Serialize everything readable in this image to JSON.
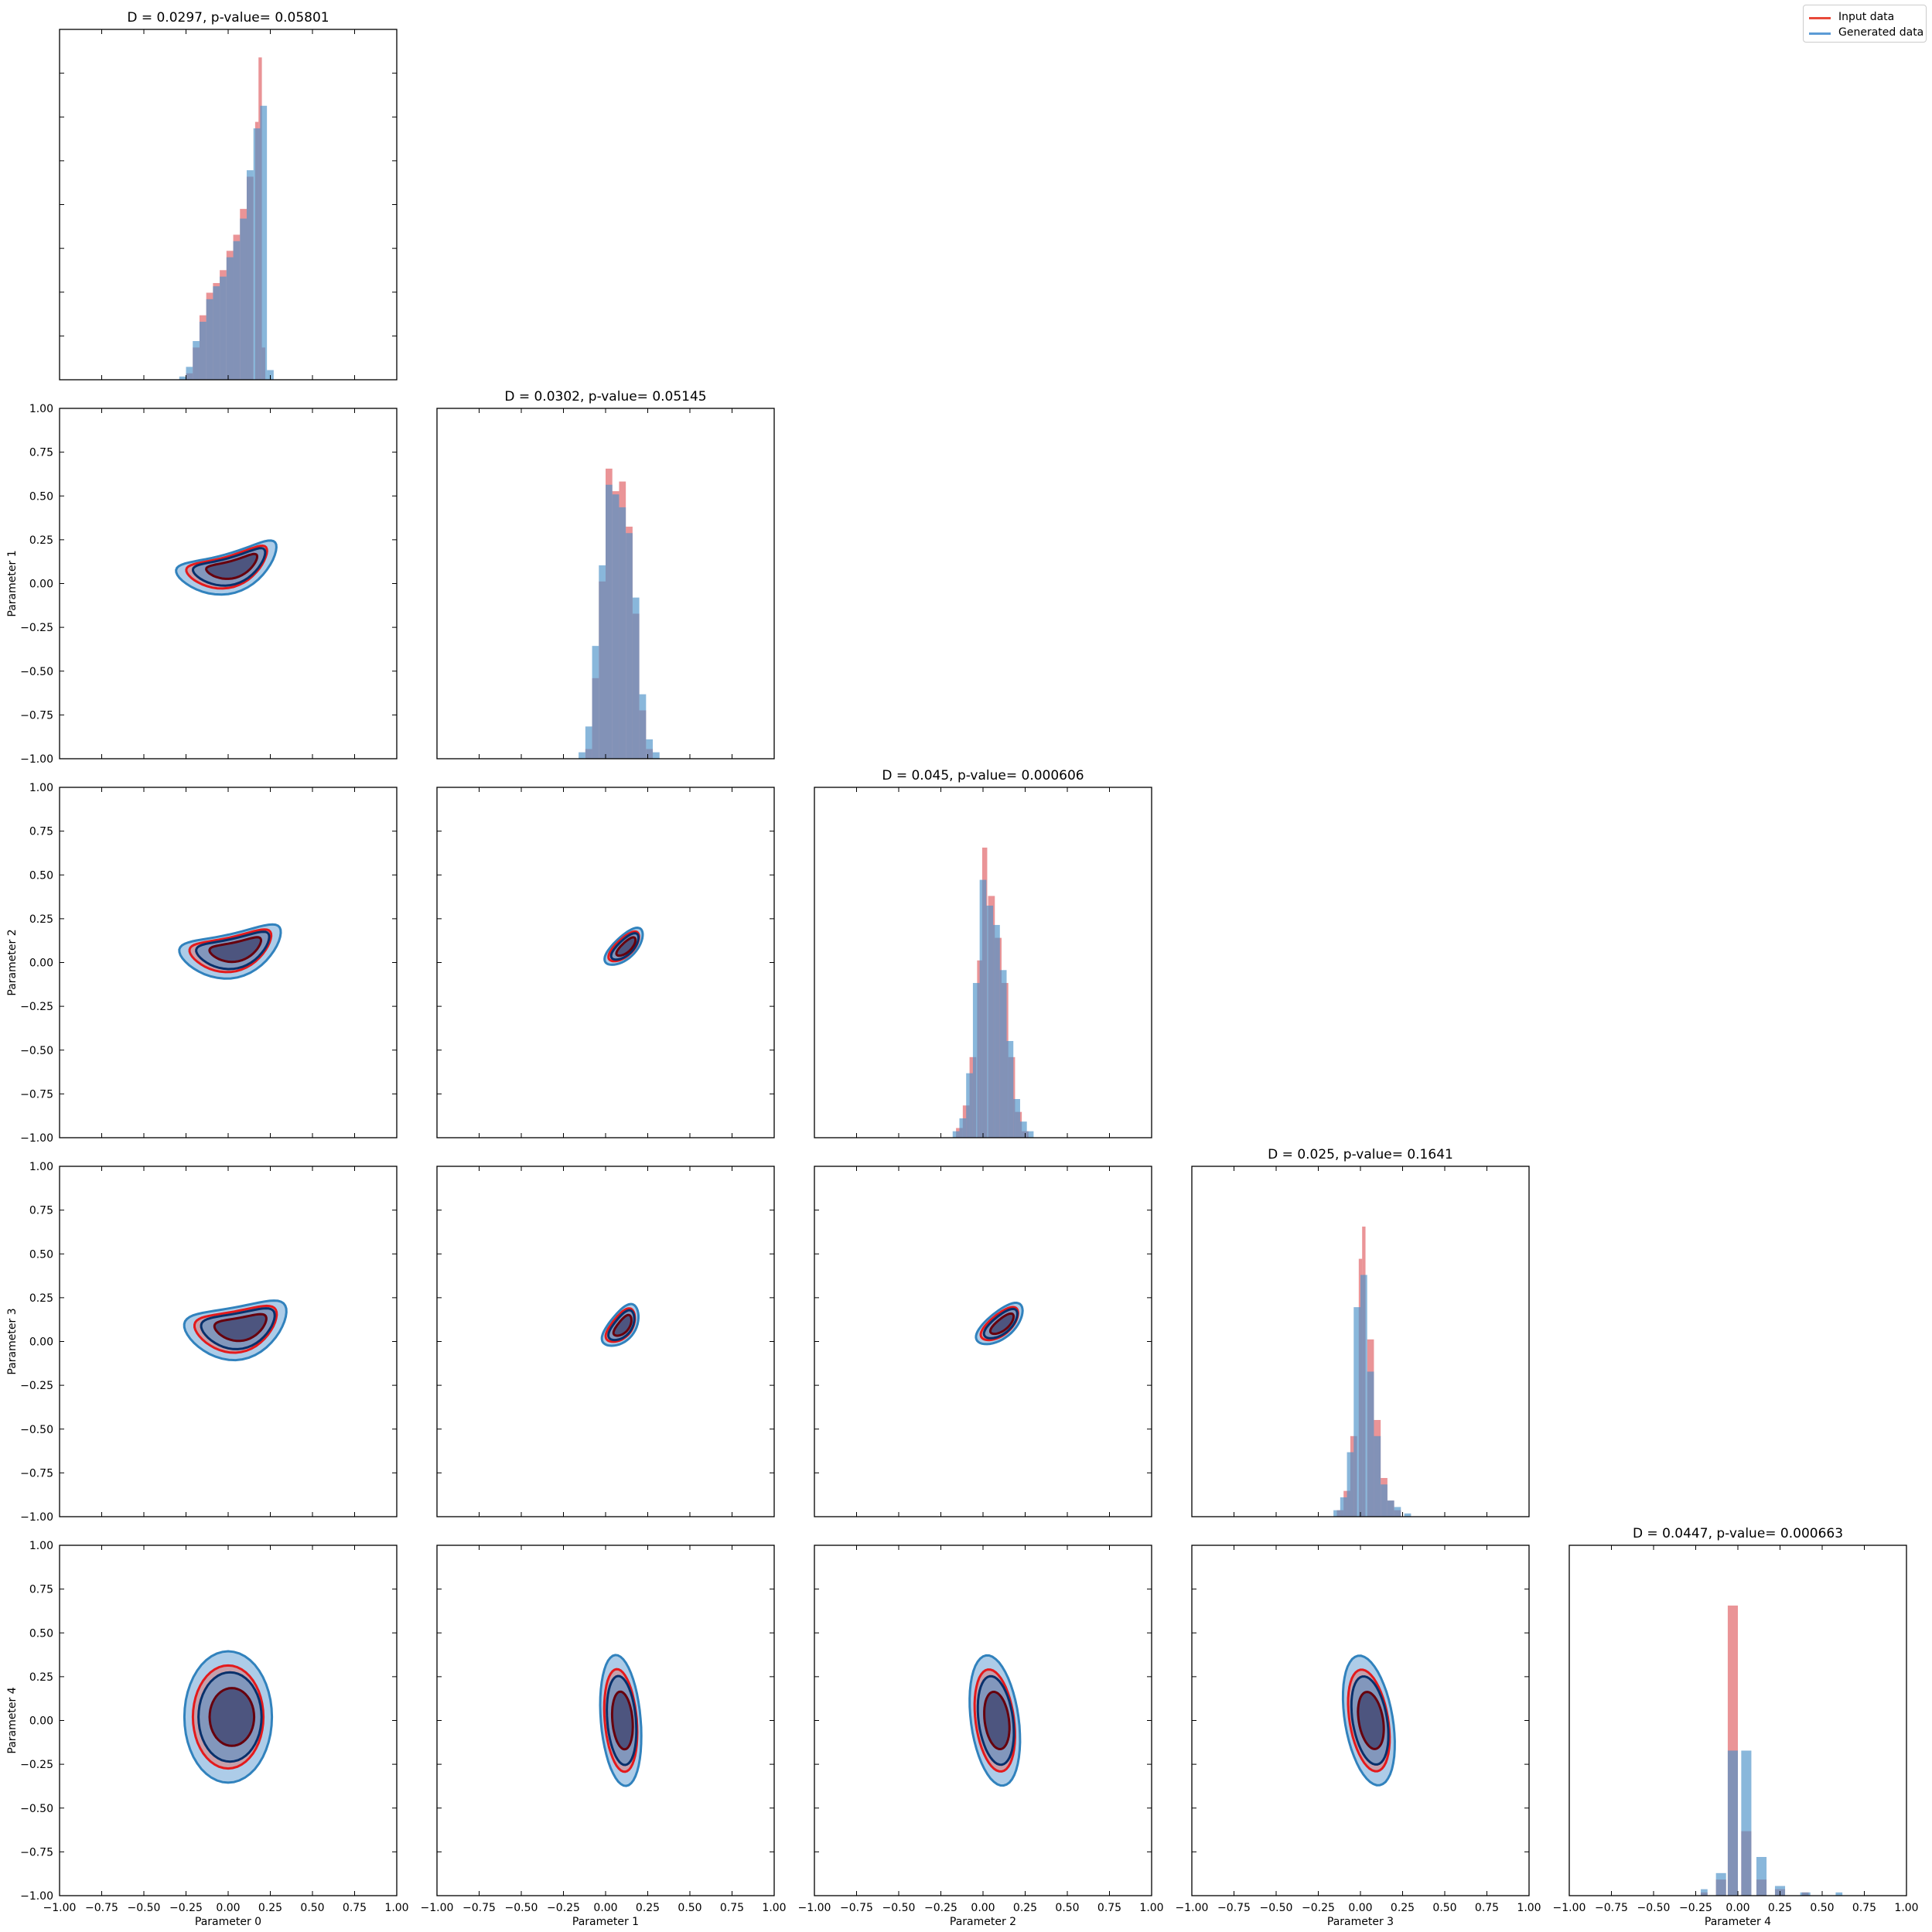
{
  "legend": {
    "entries": [
      {
        "label": "Input data",
        "color": "#e8493a"
      },
      {
        "label": "Generated data",
        "color": "#5b9bd5"
      }
    ]
  },
  "colors": {
    "input_hist": "#de5a5f",
    "generated_hist": "#4a90c8",
    "input_contour_fill": "#e46a62",
    "input_contour_line": "#e41a1c",
    "input_contour_dark": "#67000d",
    "generated_contour_fill": "#4a8fcb",
    "generated_contour_line": "#3182bd",
    "generated_contour_dark": "#08306b"
  },
  "chart_data": {
    "type": "corner",
    "parameters": [
      "Parameter 0",
      "Parameter 1",
      "Parameter 2",
      "Parameter 3",
      "Parameter 4"
    ],
    "axis_range": [
      -1.0,
      1.0
    ],
    "tick_labels": [
      "−1.00",
      "−0.75",
      "−0.50",
      "−0.25",
      "0.00",
      "0.25",
      "0.50",
      "0.75",
      "1.00"
    ],
    "diagonal": [
      {
        "title": "D = 0.0297, p-value= 0.05801",
        "peak": 0.19,
        "shape": "skewed_left",
        "input_hist": [
          [
            -0.23,
            0.02
          ],
          [
            -0.19,
            0.1
          ],
          [
            -0.15,
            0.2
          ],
          [
            -0.11,
            0.27
          ],
          [
            -0.07,
            0.3
          ],
          [
            -0.03,
            0.34
          ],
          [
            0.01,
            0.4
          ],
          [
            0.05,
            0.45
          ],
          [
            0.09,
            0.53
          ],
          [
            0.13,
            0.63
          ],
          [
            0.17,
            0.8
          ],
          [
            0.19,
            1.0
          ],
          [
            0.21,
            0.1
          ]
        ],
        "generated_hist": [
          [
            -0.27,
            0.01
          ],
          [
            -0.23,
            0.04
          ],
          [
            -0.19,
            0.12
          ],
          [
            -0.15,
            0.18
          ],
          [
            -0.11,
            0.25
          ],
          [
            -0.07,
            0.29
          ],
          [
            -0.03,
            0.32
          ],
          [
            0.01,
            0.38
          ],
          [
            0.05,
            0.43
          ],
          [
            0.09,
            0.5
          ],
          [
            0.13,
            0.65
          ],
          [
            0.17,
            0.78
          ],
          [
            0.21,
            0.85
          ],
          [
            0.25,
            0.03
          ]
        ]
      },
      {
        "title": "D = 0.0302, p-value= 0.05145",
        "peak": 0.05,
        "shape": "normal",
        "input_hist": [
          [
            -0.1,
            0.03
          ],
          [
            -0.06,
            0.25
          ],
          [
            -0.02,
            0.55
          ],
          [
            0.02,
            0.9
          ],
          [
            0.06,
            0.83
          ],
          [
            0.1,
            0.86
          ],
          [
            0.14,
            0.72
          ],
          [
            0.18,
            0.45
          ],
          [
            0.22,
            0.15
          ],
          [
            0.26,
            0.03
          ]
        ],
        "generated_hist": [
          [
            -0.14,
            0.02
          ],
          [
            -0.1,
            0.1
          ],
          [
            -0.06,
            0.35
          ],
          [
            -0.02,
            0.6
          ],
          [
            0.02,
            0.85
          ],
          [
            0.06,
            0.82
          ],
          [
            0.1,
            0.78
          ],
          [
            0.14,
            0.7
          ],
          [
            0.18,
            0.5
          ],
          [
            0.22,
            0.2
          ],
          [
            0.26,
            0.06
          ],
          [
            0.3,
            0.02
          ]
        ]
      },
      {
        "title": "D = 0.045, p-value= 0.000606",
        "peak": 0.03,
        "shape": "normal",
        "input_hist": [
          [
            -0.14,
            0.03
          ],
          [
            -0.1,
            0.1
          ],
          [
            -0.06,
            0.25
          ],
          [
            -0.02,
            0.55
          ],
          [
            0.01,
            0.9
          ],
          [
            0.05,
            0.75
          ],
          [
            0.09,
            0.62
          ],
          [
            0.13,
            0.48
          ],
          [
            0.17,
            0.25
          ],
          [
            0.21,
            0.08
          ],
          [
            0.25,
            0.02
          ]
        ],
        "generated_hist": [
          [
            -0.16,
            0.02
          ],
          [
            -0.12,
            0.06
          ],
          [
            -0.08,
            0.2
          ],
          [
            -0.04,
            0.48
          ],
          [
            0.0,
            0.8
          ],
          [
            0.04,
            0.72
          ],
          [
            0.08,
            0.66
          ],
          [
            0.12,
            0.52
          ],
          [
            0.16,
            0.3
          ],
          [
            0.2,
            0.12
          ],
          [
            0.24,
            0.05
          ],
          [
            0.28,
            0.02
          ]
        ]
      },
      {
        "title": "D = 0.025, p-value= 0.1641",
        "peak": 0.02,
        "shape": "normal",
        "input_hist": [
          [
            -0.12,
            0.02
          ],
          [
            -0.08,
            0.08
          ],
          [
            -0.04,
            0.25
          ],
          [
            0.0,
            0.8
          ],
          [
            0.02,
            0.9
          ],
          [
            0.06,
            0.55
          ],
          [
            0.1,
            0.3
          ],
          [
            0.14,
            0.12
          ],
          [
            0.18,
            0.05
          ],
          [
            0.22,
            0.02
          ]
        ],
        "generated_hist": [
          [
            -0.14,
            0.02
          ],
          [
            -0.1,
            0.06
          ],
          [
            -0.06,
            0.2
          ],
          [
            -0.02,
            0.65
          ],
          [
            0.02,
            0.75
          ],
          [
            0.06,
            0.45
          ],
          [
            0.1,
            0.25
          ],
          [
            0.14,
            0.1
          ],
          [
            0.18,
            0.05
          ],
          [
            0.22,
            0.03
          ],
          [
            0.28,
            0.01
          ]
        ]
      },
      {
        "title": "D = 0.0447, p-value= 0.000663",
        "peak": -0.03,
        "shape": "spiked",
        "input_hist": [
          [
            -0.2,
            0.01
          ],
          [
            -0.1,
            0.05
          ],
          [
            -0.03,
            0.9
          ],
          [
            0.05,
            0.2
          ],
          [
            0.14,
            0.05
          ],
          [
            0.25,
            0.02
          ],
          [
            0.4,
            0.01
          ]
        ],
        "generated_hist": [
          [
            -0.2,
            0.02
          ],
          [
            -0.1,
            0.07
          ],
          [
            -0.03,
            0.45
          ],
          [
            0.05,
            0.45
          ],
          [
            0.14,
            0.12
          ],
          [
            0.25,
            0.03
          ],
          [
            0.4,
            0.01
          ],
          [
            0.6,
            0.01
          ]
        ]
      }
    ]
  }
}
